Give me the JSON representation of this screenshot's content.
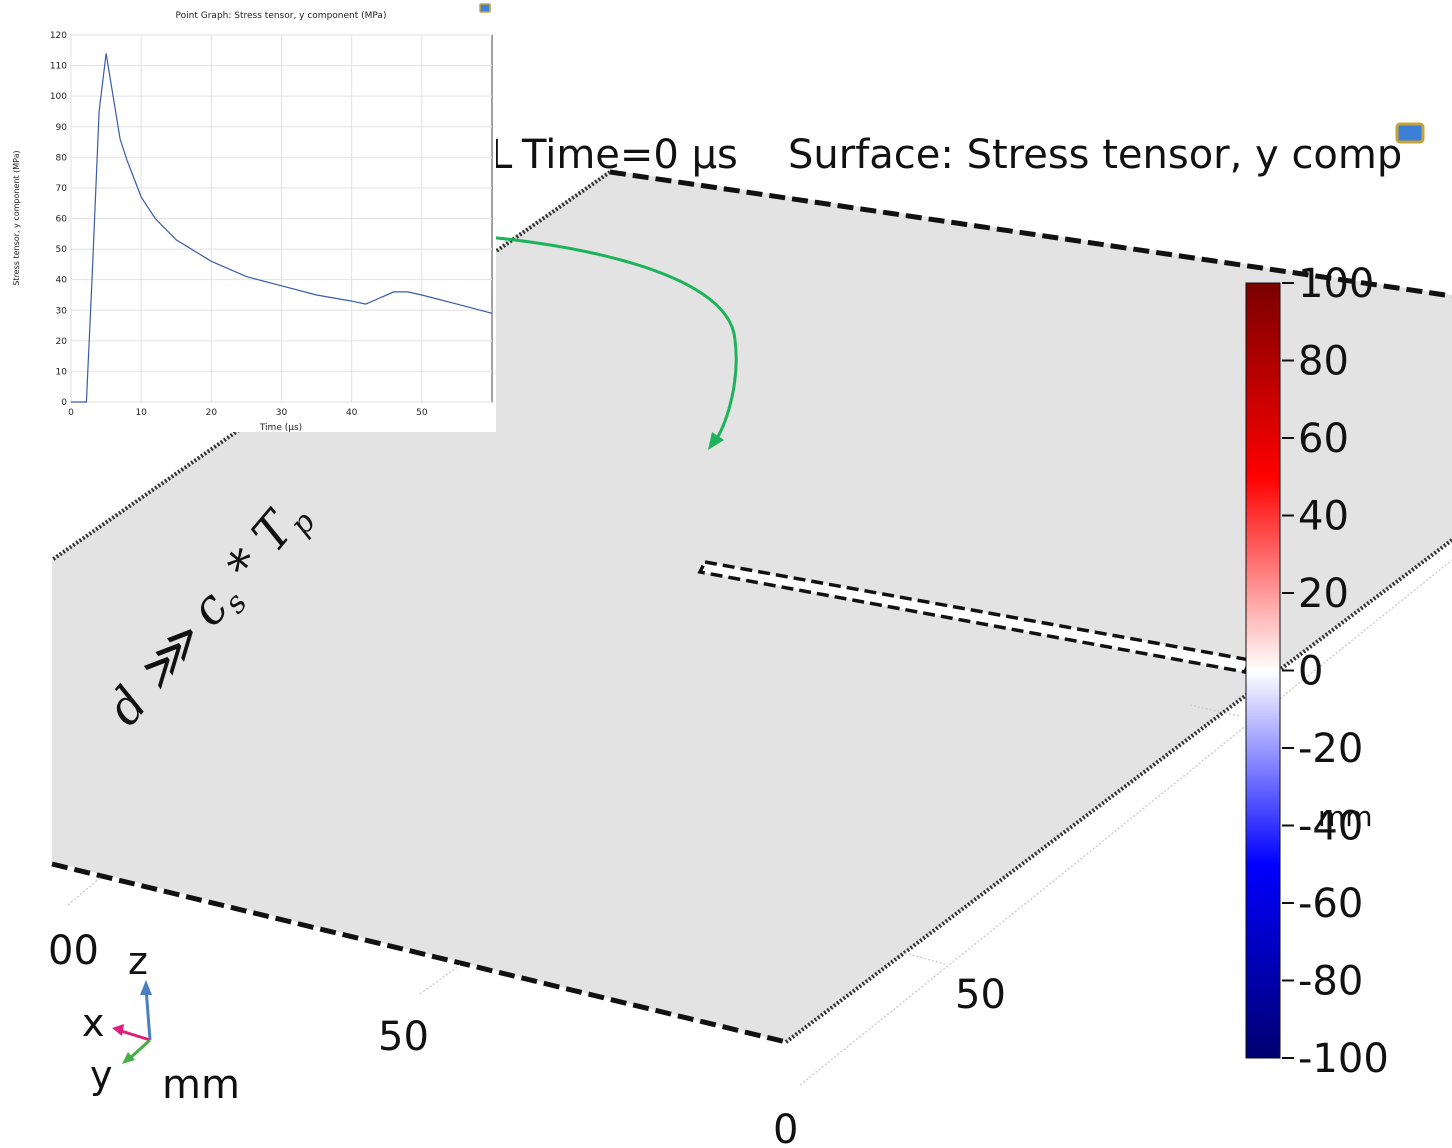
{
  "plot3d": {
    "title_prefix": "Time=0 µs",
    "title_suffix": "Surface: Stress tensor, y comp",
    "colorbar_ticks": [
      "100",
      "80",
      "60",
      "40",
      "20",
      "0",
      "-20",
      "-40",
      "-60",
      "-80",
      "-100"
    ],
    "axis_tick_a": "50",
    "axis_tick_b": "50",
    "axis_tick_zero": "0",
    "axis_tick_partial": "00",
    "unit_label": "mm",
    "triad": {
      "x": "x",
      "y": "y",
      "z": "z"
    },
    "colors": {
      "plane": "#e3e3e3",
      "colorbar_top": "#7a0000",
      "colorbar_mid": "#ffffff",
      "colorbar_bottom": "#000070",
      "arrow": "#1db35a"
    }
  },
  "annotation": {
    "formula_main": "d ⋙ c",
    "formula_sub1": "s",
    "formula_mid": " * T",
    "formula_sub2": "p"
  },
  "inset_plot": {
    "title": "Point Graph: Stress tensor, y component (MPa)",
    "xlabel": "Time (µs)",
    "ylabel": "Stress tensor, y component (MPa)"
  },
  "chart_data": {
    "type": "line",
    "title": "Point Graph: Stress tensor, y component (MPa)",
    "xlabel": "Time (µs)",
    "ylabel": "Stress tensor, y component (MPa)",
    "xlim": [
      0,
      60
    ],
    "ylim": [
      0,
      120
    ],
    "xticks": [
      0,
      10,
      20,
      30,
      40,
      50
    ],
    "yticks": [
      0,
      10,
      20,
      30,
      40,
      50,
      60,
      70,
      80,
      90,
      100,
      110,
      120
    ],
    "grid": true,
    "series": [
      {
        "color": "#3a5ba8",
        "x": [
          0,
          2.2,
          3,
          4,
          5,
          6,
          7,
          8,
          10,
          12,
          15,
          20,
          25,
          30,
          35,
          40,
          42,
          44,
          46,
          48,
          50,
          55,
          60
        ],
        "y": [
          0,
          0,
          40,
          95,
          114,
          100,
          86,
          79,
          67,
          60,
          53,
          46,
          41,
          38,
          35,
          33,
          32,
          34,
          36,
          36,
          35,
          32,
          29
        ]
      }
    ]
  }
}
